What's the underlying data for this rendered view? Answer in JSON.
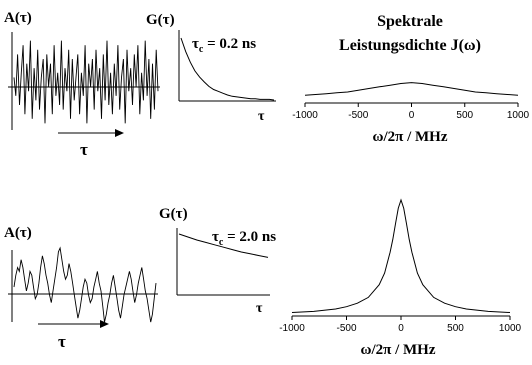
{
  "chart_data": [
    {
      "type": "line",
      "panel": "noise-top",
      "ylabel": "A(τ)",
      "xlabel": "τ",
      "ylim": [
        -1,
        1
      ],
      "series": [
        {
          "values": [
            0.1,
            -0.3,
            0.6,
            -0.5,
            0.2,
            0.8,
            -0.7,
            0.4,
            -0.2,
            0.9,
            -0.8,
            0.3,
            -0.4,
            0.7,
            -0.6,
            0.1,
            0.5,
            -0.9,
            0.6,
            -0.1,
            0.4,
            -0.7,
            0.8,
            -0.3,
            0.2,
            -0.5,
            0.9,
            -0.6,
            0.3,
            -0.2,
            0.7,
            -0.8,
            0.5,
            -0.4,
            0.1,
            0.6,
            -0.7,
            0.2,
            -0.3,
            0.8,
            -0.9,
            0.4,
            -0.1,
            0.5,
            -0.6,
            0.7,
            -0.2,
            0.3,
            -0.8,
            0.6,
            -0.4,
            0.9,
            -0.5,
            0.2,
            -0.7,
            0.4,
            -0.3,
            0.8,
            -0.6,
            0.1,
            0.5,
            -0.9,
            0.7,
            -0.2,
            0.3,
            -0.5,
            0.6,
            -0.1,
            0.8,
            -0.7,
            0.2,
            -0.4,
            0.9,
            -0.3,
            0.5,
            -0.8,
            0.4,
            -0.6,
            0.7,
            -0.2
          ]
        }
      ]
    },
    {
      "type": "line",
      "panel": "correlation-top",
      "ylabel": "G(τ)",
      "xlabel": "τ",
      "annotation": {
        "tau": "τ",
        "sub": "c",
        "rest": " = 0.2 ns"
      },
      "decay_time_ns": 0.2,
      "x": [
        0,
        0.05,
        0.1,
        0.15,
        0.2,
        0.25,
        0.3,
        0.35,
        0.4,
        0.45,
        0.5,
        0.55,
        0.6,
        0.65,
        0.7,
        0.75,
        0.8,
        0.85,
        0.9,
        0.95,
        1.0
      ],
      "series": [
        {
          "values": [
            1.0,
            0.78,
            0.61,
            0.47,
            0.37,
            0.29,
            0.22,
            0.17,
            0.14,
            0.11,
            0.08,
            0.06,
            0.05,
            0.04,
            0.03,
            0.02,
            0.02,
            0.01,
            0.01,
            0.01,
            0.0
          ]
        }
      ]
    },
    {
      "type": "line",
      "panel": "spectrum-top",
      "title_line1": "Spektrale",
      "title_line2": "Leistungsdichte J(ω)",
      "xlabel": "ω/2π / MHz",
      "xticks": [
        "-1000",
        "-500",
        "0",
        "500",
        "1000"
      ],
      "xlim": [
        -1000,
        1000
      ],
      "ylim": [
        0,
        1
      ],
      "x": [
        -1000,
        -900,
        -800,
        -700,
        -600,
        -500,
        -400,
        -300,
        -200,
        -100,
        0,
        100,
        200,
        300,
        400,
        500,
        600,
        700,
        800,
        900,
        1000
      ],
      "series": [
        {
          "values": [
            0.09,
            0.1,
            0.11,
            0.12,
            0.13,
            0.15,
            0.17,
            0.19,
            0.21,
            0.23,
            0.24,
            0.23,
            0.21,
            0.19,
            0.17,
            0.15,
            0.13,
            0.12,
            0.11,
            0.1,
            0.09
          ]
        }
      ]
    },
    {
      "type": "line",
      "panel": "noise-bottom",
      "ylabel": "A(τ)",
      "xlabel": "τ",
      "ylim": [
        -1,
        1
      ],
      "series": [
        {
          "values": [
            0.0,
            0.3,
            0.5,
            0.4,
            0.7,
            0.5,
            0.2,
            -0.1,
            0.1,
            0.4,
            0.3,
            0.0,
            -0.3,
            -0.2,
            0.1,
            0.5,
            0.8,
            0.6,
            0.3,
            0.1,
            -0.2,
            -0.4,
            -0.1,
            0.2,
            0.5,
            0.9,
            1.0,
            0.7,
            0.4,
            0.2,
            0.3,
            0.6,
            0.4,
            0.1,
            -0.2,
            -0.5,
            -0.8,
            -0.6,
            -0.3,
            0.0,
            0.2,
            0.1,
            -0.2,
            -0.4,
            -0.3,
            0.0,
            0.2,
            0.4,
            0.1,
            -0.1,
            -0.5,
            -0.9,
            -0.7,
            -0.4,
            -0.2,
            0.1,
            0.3,
            0.0,
            -0.3,
            -0.6,
            -0.8,
            -0.5,
            -0.2,
            0.0,
            0.2,
            0.4,
            0.2,
            -0.1,
            -0.4,
            -0.2,
            0.1,
            0.3,
            0.5,
            0.2,
            -0.1,
            -0.3,
            -0.6,
            -0.9,
            -0.7,
            -0.3,
            0.1
          ]
        }
      ]
    },
    {
      "type": "line",
      "panel": "correlation-bottom",
      "ylabel": "G(τ)",
      "xlabel": "τ",
      "annotation": {
        "tau": "τ",
        "sub": "c",
        "rest": " = 2.0 ns"
      },
      "decay_time_ns": 2.0,
      "x": [
        0,
        0.1,
        0.2,
        0.3,
        0.4,
        0.5,
        0.6,
        0.7,
        0.8,
        0.9,
        1.0
      ],
      "series": [
        {
          "values": [
            1.0,
            0.95,
            0.9,
            0.86,
            0.82,
            0.78,
            0.74,
            0.7,
            0.67,
            0.64,
            0.61
          ]
        }
      ]
    },
    {
      "type": "line",
      "panel": "spectrum-bottom",
      "xlabel": "ω/2π / MHz",
      "xticks": [
        "-1000",
        "-500",
        "0",
        "500",
        "1000"
      ],
      "xlim": [
        -1000,
        1000
      ],
      "ylim": [
        0,
        1
      ],
      "x": [
        -1000,
        -800,
        -600,
        -500,
        -400,
        -300,
        -200,
        -150,
        -100,
        -75,
        -50,
        -25,
        0,
        25,
        50,
        75,
        100,
        150,
        200,
        300,
        400,
        500,
        600,
        800,
        1000
      ],
      "series": [
        {
          "values": [
            0.03,
            0.04,
            0.06,
            0.08,
            0.11,
            0.16,
            0.27,
            0.37,
            0.55,
            0.66,
            0.8,
            0.93,
            1.0,
            0.93,
            0.8,
            0.66,
            0.55,
            0.37,
            0.27,
            0.16,
            0.11,
            0.08,
            0.06,
            0.04,
            0.03
          ]
        }
      ]
    }
  ]
}
